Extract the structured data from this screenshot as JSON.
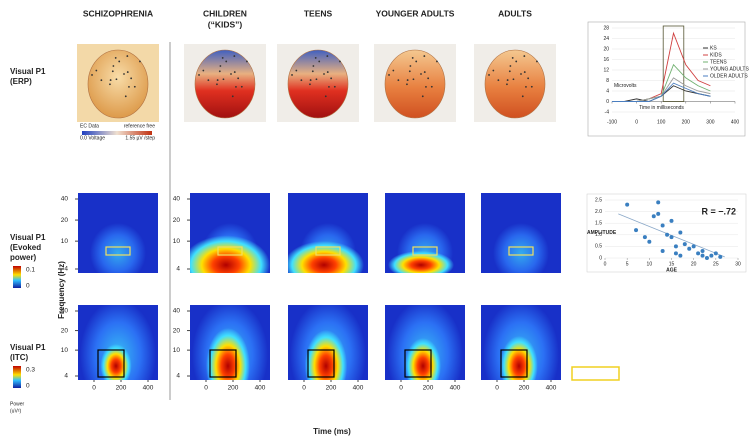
{
  "columns": [
    "SCHIZOPHRENIA",
    "CHILDREN",
    "TEENS",
    "YOUNGER ADULTS",
    "ADULTS"
  ],
  "children_note": "(“KIDS”)",
  "rows": [
    [
      "Visual P1",
      "(ERP)"
    ],
    [
      "Visual P1",
      "(Evoked",
      "power)"
    ],
    [
      "Visual P1",
      "(ITC)"
    ]
  ],
  "scalp_legend": [
    "EC Data",
    "0.0 Voltage",
    "reference free",
    "1.55 µV /step"
  ],
  "frequency_label": "Frequency (Hz)",
  "time_label": "Time (ms)",
  "frequency_ticks": [
    40,
    20,
    10,
    4
  ],
  "time_ticks": [
    0,
    200,
    400
  ],
  "evoked_colorbar": [
    0.1,
    0
  ],
  "itc_colorbar": [
    0.3,
    0
  ],
  "power_label": [
    "Power",
    "(uV²)"
  ],
  "chart_data": [
    {
      "type": "line",
      "y_label": "Microvolts",
      "x_label": "Time in milliseconds",
      "x": [
        -100,
        -50,
        0,
        50,
        100,
        150,
        200,
        250,
        300
      ],
      "series": [
        {
          "name": "KS",
          "color": "#333333",
          "values": [
            0,
            0,
            1,
            0,
            2,
            6,
            4,
            3,
            2
          ]
        },
        {
          "name": "KIDS",
          "color": "#d04040",
          "values": [
            0,
            0,
            0,
            1,
            3,
            26,
            14,
            8,
            6
          ]
        },
        {
          "name": "TEENS",
          "color": "#70b070",
          "values": [
            0,
            0,
            0,
            1,
            2,
            14,
            9,
            6,
            4
          ]
        },
        {
          "name": "YOUNG ADULTS",
          "color": "#9a9a9a",
          "values": [
            0,
            0,
            0,
            1,
            2,
            9,
            6,
            4,
            3
          ]
        },
        {
          "name": "OLDER ADULTS",
          "color": "#4a7ec0",
          "values": [
            0,
            0,
            0,
            0,
            2,
            7,
            5,
            3,
            2
          ]
        }
      ],
      "xlim": [
        -100,
        400
      ],
      "xticks": [
        -100,
        0,
        100,
        200,
        300,
        400
      ],
      "ylim": [
        -4,
        28
      ],
      "yticks": [
        -4,
        0,
        4,
        8,
        12,
        16,
        20,
        24,
        28
      ]
    },
    {
      "type": "scatter",
      "y_label": "AMPLITUDE",
      "x_label": "AGE",
      "annotation": "R = −.72",
      "color": "#3a7fc0",
      "x": [
        5,
        7,
        9,
        10,
        11,
        12,
        12,
        13,
        13,
        14,
        15,
        15,
        16,
        16,
        17,
        17,
        18,
        19,
        20,
        21,
        22,
        22,
        23,
        24,
        25,
        26
      ],
      "values": [
        2.3,
        1.2,
        0.9,
        0.7,
        1.8,
        2.4,
        1.9,
        1.4,
        0.3,
        1.0,
        0.9,
        1.6,
        0.5,
        0.2,
        1.1,
        0.1,
        0.6,
        0.4,
        0.5,
        0.2,
        0.1,
        0.3,
        0.0,
        0.1,
        0.2,
        0.05
      ],
      "xlim": [
        0,
        30
      ],
      "xticks": [
        0,
        5,
        10,
        15,
        20,
        25,
        30
      ],
      "ylim": [
        0,
        2.5
      ],
      "yticks": [
        0,
        0.5,
        {
          "value": 1,
          "label": "1.0"
        },
        1.5,
        {
          "value": 2,
          "label": "2.0"
        },
        2.5
      ]
    }
  ]
}
